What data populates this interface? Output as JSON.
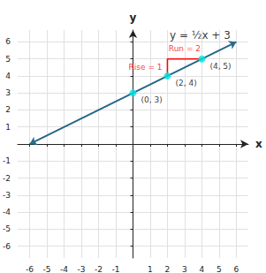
{
  "chart_data": {
    "type": "line",
    "xlabel": "x",
    "ylabel": "y",
    "xlim": [
      -6.7,
      6.7
    ],
    "ylim": [
      -6.7,
      6.7
    ],
    "xticks": [
      -6,
      -5,
      -4,
      -3,
      -2,
      -1,
      1,
      2,
      3,
      4,
      5,
      6
    ],
    "yticks": [
      -6,
      -5,
      -4,
      -3,
      -2,
      -1,
      1,
      2,
      3,
      4,
      5,
      6
    ],
    "grid": true,
    "series": [
      {
        "type": "line",
        "color": "#2a6b8a",
        "marker": "arrow",
        "x": [
          -6,
          6
        ],
        "values": [
          0,
          6
        ]
      },
      {
        "type": "line",
        "color": "red",
        "x": [
          2,
          2,
          4
        ],
        "values": [
          4,
          5,
          5
        ]
      },
      {
        "type": "scatter",
        "color": "#00e5e5",
        "x": [
          0,
          2,
          4
        ],
        "values": [
          3,
          4,
          5
        ],
        "data_labels": true,
        "value_labels": [
          "(0, 3)",
          "(2, 4)",
          "(4, 5)"
        ]
      }
    ],
    "annotations": [
      {
        "text": "Rise = 1",
        "x": 1.85,
        "y": 4.5,
        "color": "red"
      },
      {
        "text": "Run = 2",
        "x": 3.0,
        "y": 5.22,
        "color": "red"
      },
      {
        "text": "y = ½x + 3",
        "x": 3.9,
        "y": 6.85
      }
    ]
  }
}
